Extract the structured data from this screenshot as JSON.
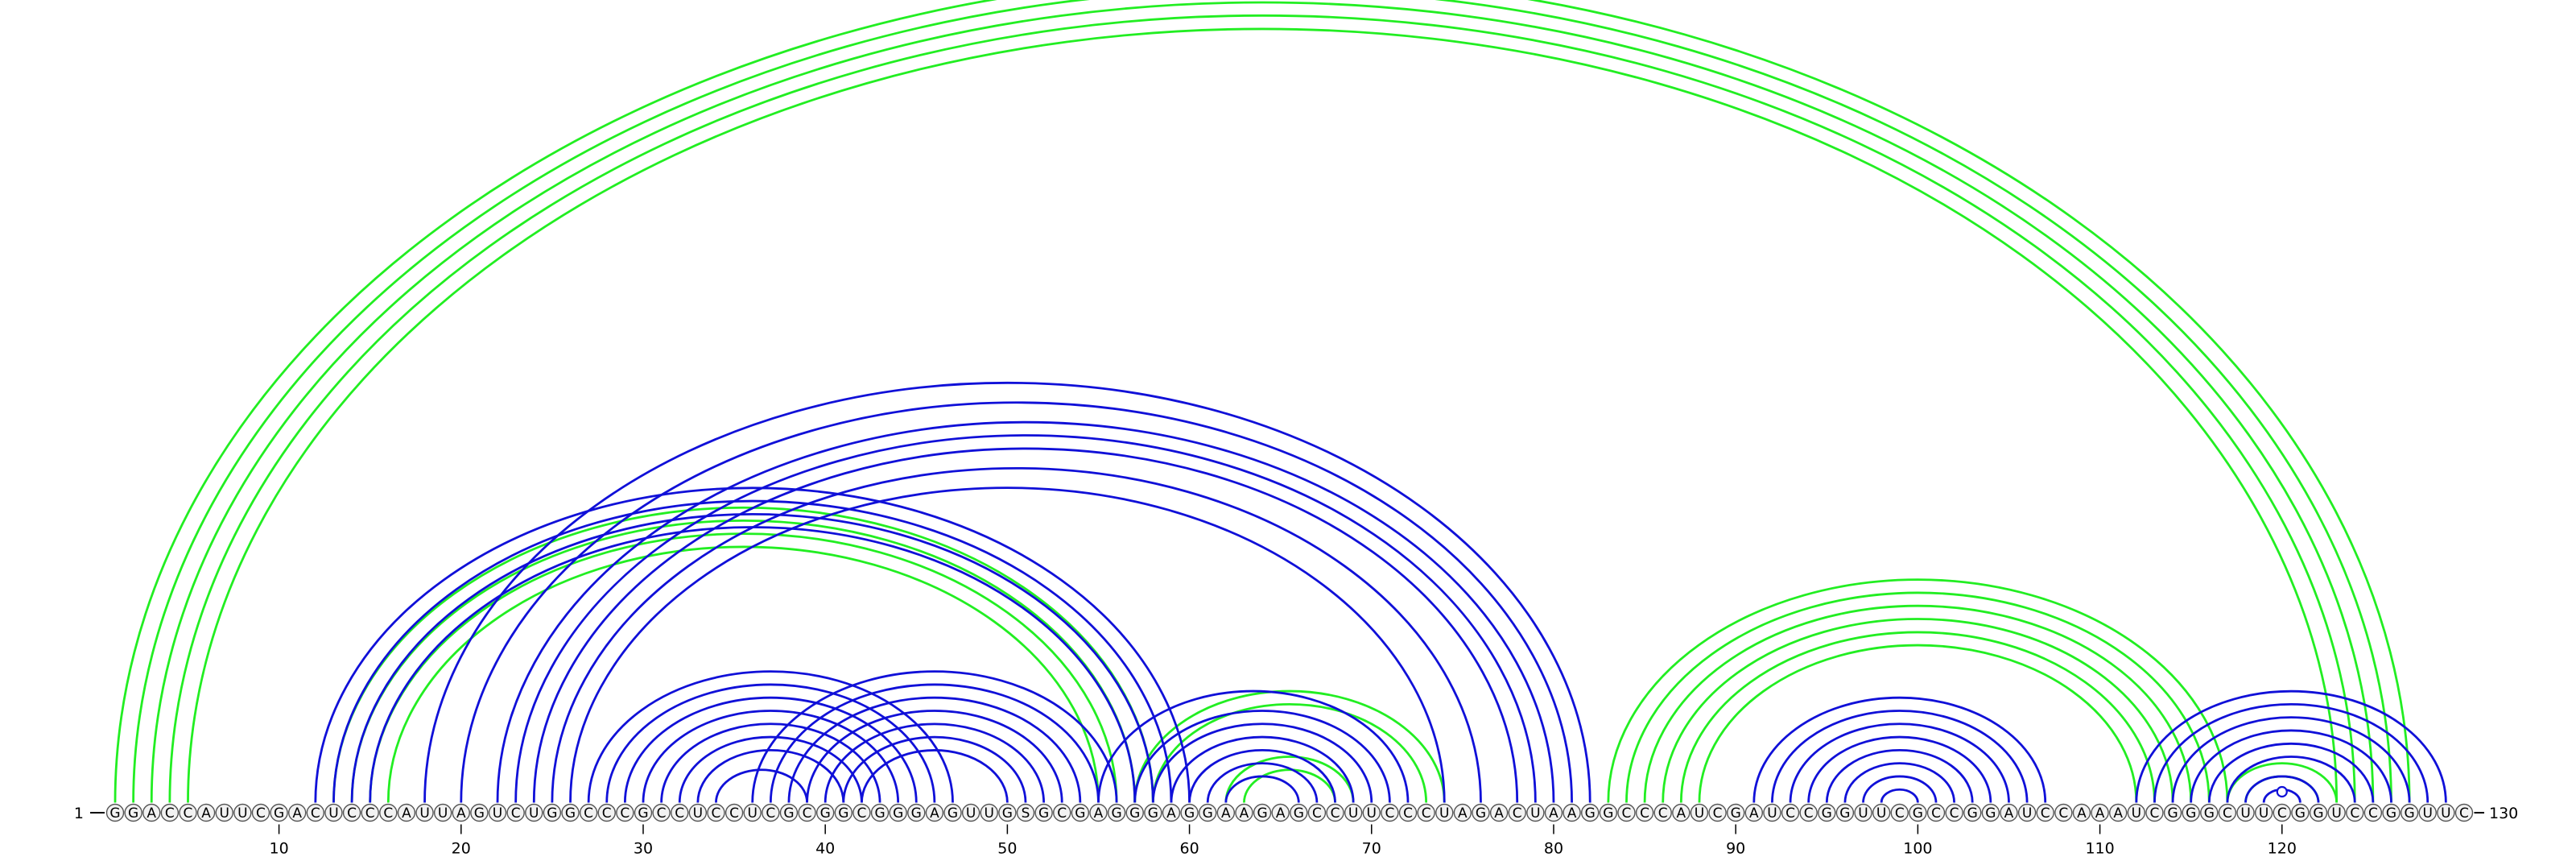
{
  "sequence": "GGACCAUUCGACUCCCAUUAGUCUGGCCCGCCUCCUCGCGGCGGGAGUUGSGCGAGGGAGGAAGAGCCUUCCCUAGACUAAGGCCCAUCGAUCCGGUUCGCCGGAUCCAAAUCGGGCUUCGGUCCGGUUC",
  "start_label": "1",
  "end_label": "130",
  "ticks": [
    10,
    20,
    30,
    40,
    50,
    60,
    70,
    80,
    90,
    100,
    110,
    120
  ],
  "colors": {
    "green": "#22ee22",
    "blue": "#1010d8",
    "base_fill": "#f2f2f2",
    "base_stroke": "#555555"
  },
  "arcs": {
    "green": [
      [
        1,
        127
      ],
      [
        2,
        126
      ],
      [
        3,
        125
      ],
      [
        4,
        124
      ],
      [
        5,
        123
      ],
      [
        13,
        58
      ],
      [
        14,
        57
      ],
      [
        15,
        56
      ],
      [
        16,
        55
      ],
      [
        62,
        69
      ],
      [
        63,
        68
      ],
      [
        57,
        74
      ],
      [
        58,
        73
      ],
      [
        83,
        117
      ],
      [
        84,
        116
      ],
      [
        85,
        115
      ],
      [
        86,
        114
      ],
      [
        87,
        113
      ],
      [
        88,
        112
      ],
      [
        117,
        123
      ],
      [
        118,
        122
      ]
    ],
    "blue": [
      [
        12,
        60
      ],
      [
        13,
        59
      ],
      [
        14,
        58
      ],
      [
        15,
        57
      ],
      [
        18,
        82
      ],
      [
        20,
        81
      ],
      [
        22,
        80
      ],
      [
        23,
        79
      ],
      [
        24,
        78
      ],
      [
        25,
        76
      ],
      [
        26,
        74
      ],
      [
        27,
        47
      ],
      [
        28,
        46
      ],
      [
        29,
        45
      ],
      [
        30,
        44
      ],
      [
        31,
        43
      ],
      [
        32,
        42
      ],
      [
        33,
        41
      ],
      [
        34,
        39
      ],
      [
        36,
        56
      ],
      [
        37,
        55
      ],
      [
        38,
        54
      ],
      [
        39,
        53
      ],
      [
        40,
        52
      ],
      [
        41,
        51
      ],
      [
        42,
        50
      ],
      [
        55,
        72
      ],
      [
        57,
        71
      ],
      [
        58,
        70
      ],
      [
        59,
        69
      ],
      [
        60,
        68
      ],
      [
        61,
        67
      ],
      [
        62,
        66
      ],
      [
        91,
        107
      ],
      [
        92,
        106
      ],
      [
        93,
        105
      ],
      [
        94,
        104
      ],
      [
        95,
        103
      ],
      [
        96,
        102
      ],
      [
        97,
        101
      ],
      [
        98,
        100
      ],
      [
        112,
        129
      ],
      [
        113,
        128
      ],
      [
        114,
        127
      ],
      [
        115,
        126
      ],
      [
        116,
        125
      ],
      [
        117,
        124
      ],
      [
        118,
        122
      ],
      [
        119,
        121
      ],
      [
        120,
        120
      ]
    ]
  }
}
